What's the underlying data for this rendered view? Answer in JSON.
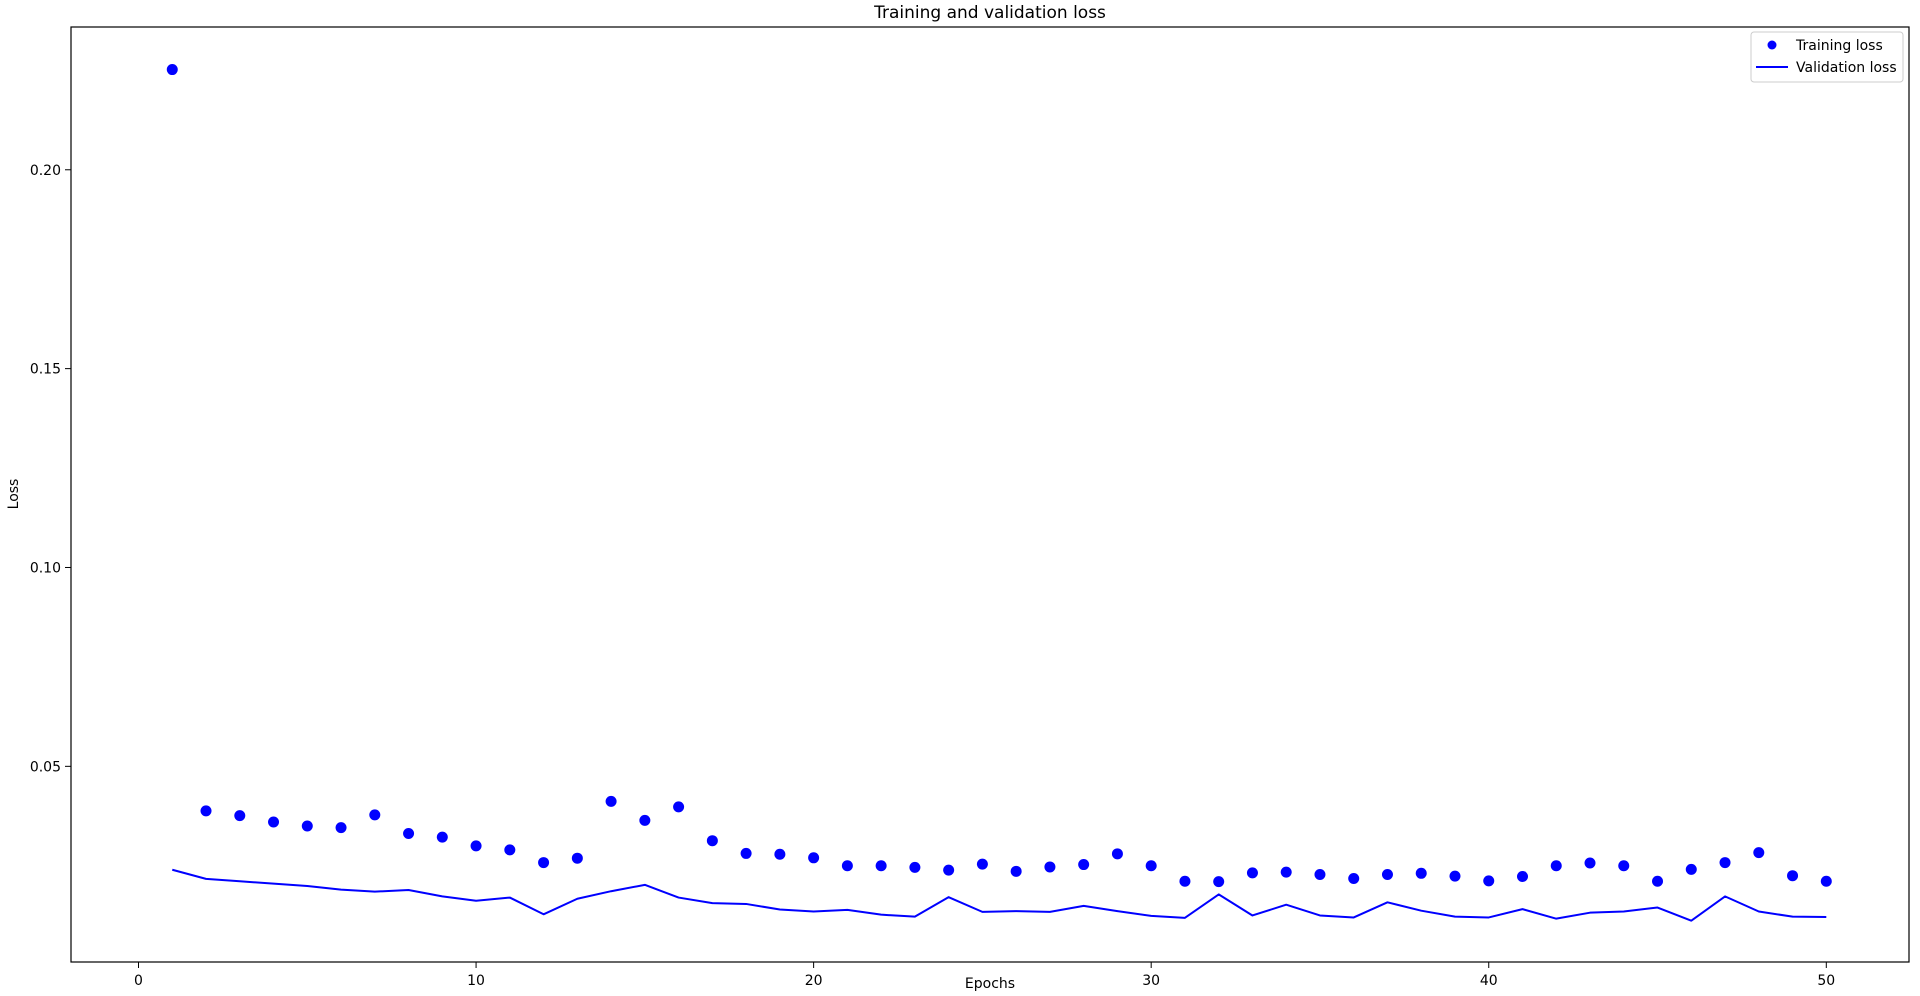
{
  "chart_data": {
    "type": "scatter",
    "title": "Training and validation loss",
    "xlabel": "Epochs",
    "ylabel": "Loss",
    "xlim": [
      -2.0,
      52.45
    ],
    "ylim": [
      0.0008,
      0.2359
    ],
    "xticks": [
      0,
      10,
      20,
      30,
      40,
      50
    ],
    "xtick_labels": [
      "0",
      "10",
      "20",
      "30",
      "40",
      "50"
    ],
    "yticks": [
      0.05,
      0.1,
      0.15,
      0.2
    ],
    "ytick_labels": [
      "0.05",
      "0.10",
      "0.15",
      "0.20"
    ],
    "grid": false,
    "legend_position": "top-right",
    "series": [
      {
        "name": "Training loss",
        "style": "markers",
        "color": "#0000ff",
        "x": [
          1,
          2,
          3,
          4,
          5,
          6,
          7,
          8,
          9,
          10,
          11,
          12,
          13,
          14,
          15,
          16,
          17,
          18,
          19,
          20,
          21,
          22,
          23,
          24,
          25,
          26,
          27,
          28,
          29,
          30,
          31,
          32,
          33,
          34,
          35,
          36,
          37,
          38,
          39,
          40,
          41,
          42,
          43,
          44,
          45,
          46,
          47,
          48,
          49,
          50
        ],
        "y": [
          0.2252,
          0.0388,
          0.0376,
          0.036,
          0.035,
          0.0346,
          0.0378,
          0.0331,
          0.0322,
          0.03,
          0.029,
          0.0258,
          0.0269,
          0.0412,
          0.0364,
          0.0398,
          0.0313,
          0.0281,
          0.0279,
          0.027,
          0.025,
          0.025,
          0.0246,
          0.0239,
          0.0254,
          0.0236,
          0.0247,
          0.0253,
          0.028,
          0.025,
          0.0211,
          0.021,
          0.0232,
          0.0234,
          0.0228,
          0.0218,
          0.0228,
          0.0231,
          0.0224,
          0.0212,
          0.0223,
          0.025,
          0.0257,
          0.025,
          0.0211,
          0.0241,
          0.0258,
          0.0283,
          0.0225,
          0.0211
        ]
      },
      {
        "name": "Validation loss",
        "style": "line",
        "color": "#0000ff",
        "x": [
          1,
          2,
          3,
          4,
          5,
          6,
          7,
          8,
          9,
          10,
          11,
          12,
          13,
          14,
          15,
          16,
          17,
          18,
          19,
          20,
          21,
          22,
          23,
          24,
          25,
          26,
          27,
          28,
          29,
          30,
          31,
          32,
          33,
          34,
          35,
          36,
          37,
          38,
          39,
          40,
          41,
          42,
          43,
          44,
          45,
          46,
          47,
          48,
          49,
          50
        ],
        "y": [
          0.024,
          0.0217,
          0.0211,
          0.0205,
          0.0199,
          0.019,
          0.0185,
          0.0189,
          0.0173,
          0.0162,
          0.017,
          0.0128,
          0.0167,
          0.0186,
          0.0202,
          0.017,
          0.0156,
          0.0154,
          0.014,
          0.0135,
          0.0139,
          0.0127,
          0.0122,
          0.0171,
          0.0134,
          0.0136,
          0.0134,
          0.0149,
          0.0136,
          0.0124,
          0.0119,
          0.0178,
          0.0125,
          0.0152,
          0.0125,
          0.012,
          0.0158,
          0.0137,
          0.0122,
          0.012,
          0.0141,
          0.0117,
          0.0132,
          0.0135,
          0.0145,
          0.0112,
          0.0173,
          0.0135,
          0.0122,
          0.0121
        ]
      }
    ]
  }
}
